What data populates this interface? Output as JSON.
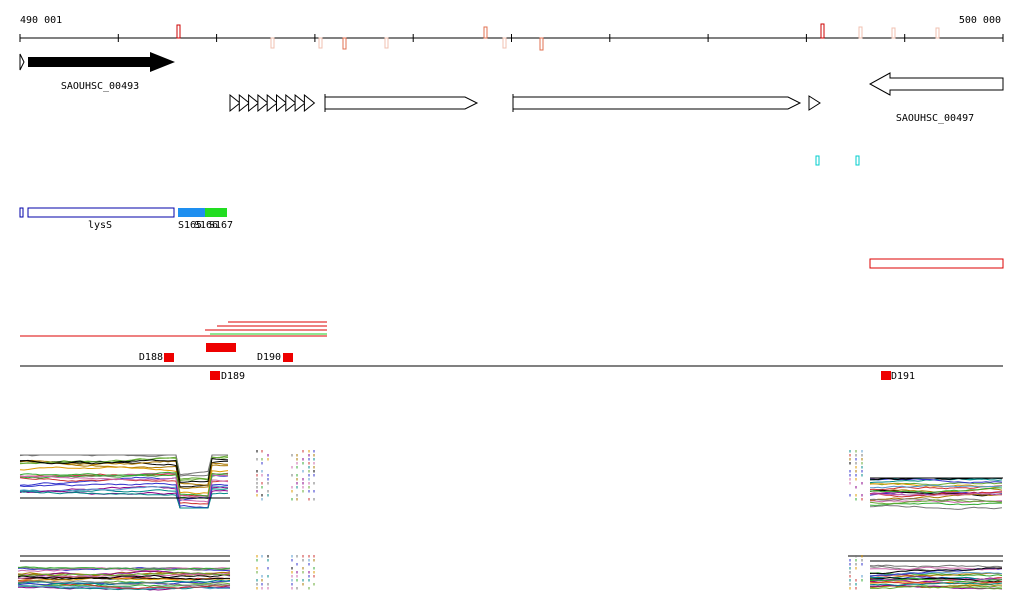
{
  "ruler": {
    "start": "490 001",
    "end": "500 000"
  },
  "genes": [
    {
      "label": "SAOUHSC_00493"
    },
    {
      "label": "SAOUHSC_00497"
    }
  ],
  "features": [
    {
      "label": "lysS"
    },
    {
      "label": "S165"
    },
    {
      "label": "S166"
    },
    {
      "label": "S167"
    }
  ],
  "segments": [
    {
      "label": "D188"
    },
    {
      "label": "D189"
    },
    {
      "label": "D190"
    },
    {
      "label": "D191"
    }
  ]
}
